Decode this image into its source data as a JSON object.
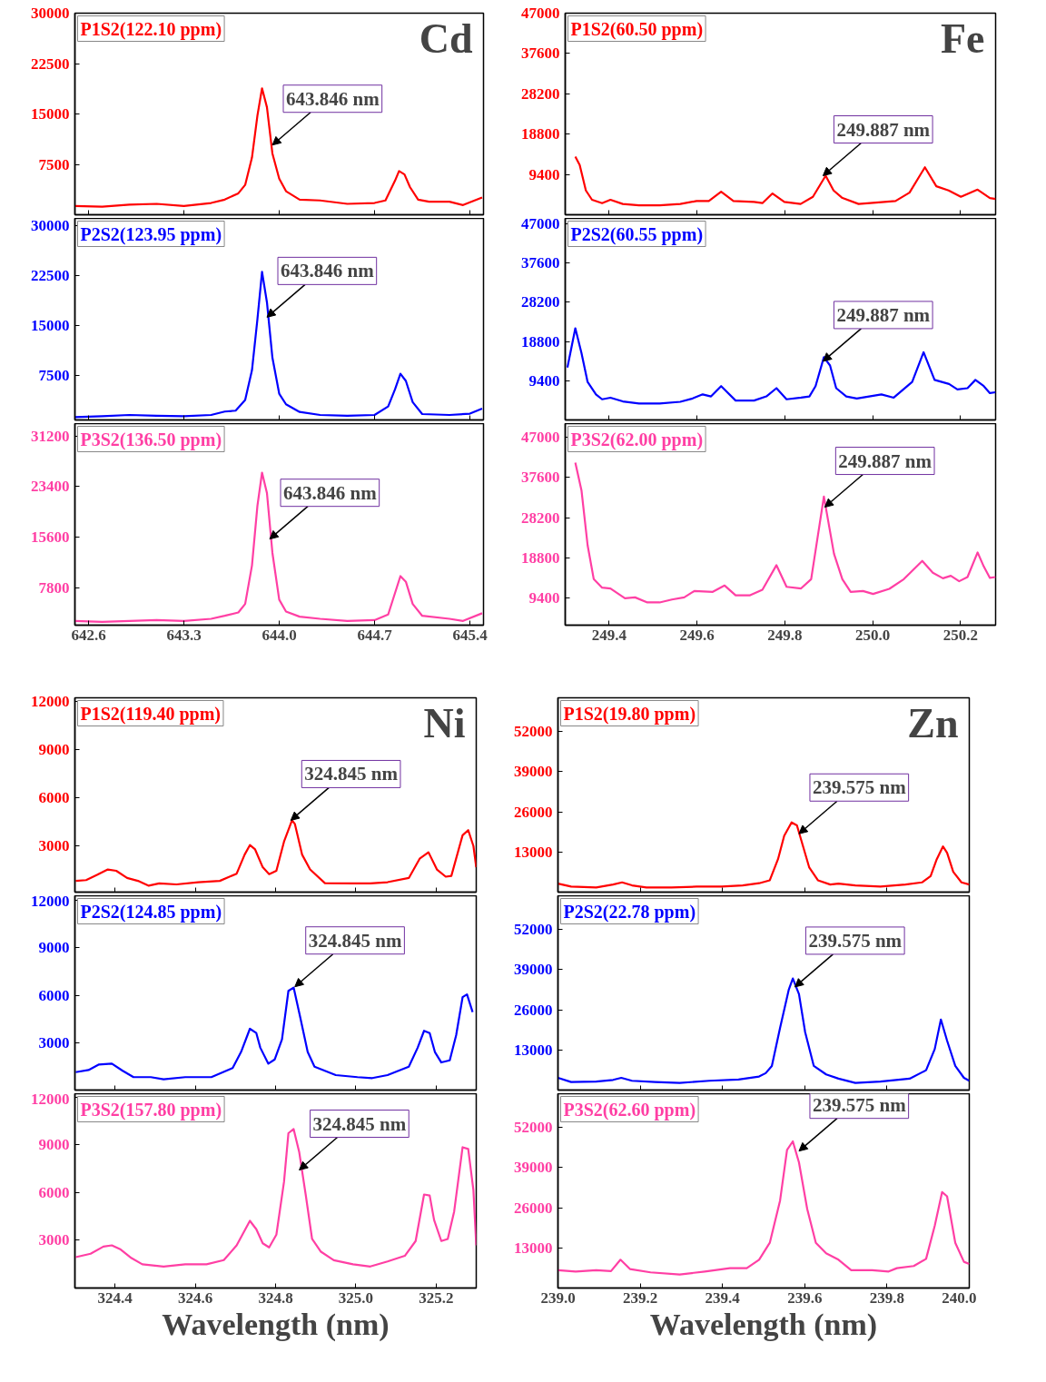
{
  "chart_data": [
    {
      "type": "line",
      "title": "Cd",
      "xlim": [
        642.5,
        645.5
      ],
      "ylim": [
        0,
        30000
      ],
      "xticks": [
        642.6,
        643.3,
        644,
        644.7,
        645.4
      ],
      "yticks": [
        7500,
        15000,
        22500,
        30000
      ],
      "tick_labels": "y",
      "x": [
        642.5,
        642.7,
        642.9,
        643.1,
        643.3,
        643.5,
        643.6,
        643.7,
        643.75,
        643.8,
        643.84,
        643.874,
        643.91,
        643.95,
        644.0,
        644.05,
        644.15,
        644.3,
        644.5,
        644.7,
        644.78,
        644.85,
        644.88,
        644.92,
        644.96,
        645.02,
        645.1,
        645.25,
        645.35,
        645.49
      ],
      "series": [
        {
          "name": "P1S2(122.10 ppm)",
          "color": "#ff0000",
          "values": [
            1310,
            1190,
            1500,
            1625,
            1310,
            1750,
            2250,
            3190,
            4440,
            8500,
            14750,
            18810,
            16000,
            9125,
            5375,
            3500,
            2250,
            2125,
            1625,
            1750,
            2125,
            5060,
            6500,
            6000,
            4125,
            2250,
            1940,
            1940,
            1440,
            2560
          ]
        }
      ],
      "annotations": [
        {
          "text": "643.846 nm",
          "x": 643.95,
          "y": 10375
        }
      ]
    },
    {
      "type": "line",
      "xlim": [
        642.5,
        645.5
      ],
      "ylim": [
        900,
        31060
      ],
      "xticks": [
        642.6,
        643.3,
        644,
        644.7,
        645.4
      ],
      "yticks": [
        7500,
        15000,
        22500,
        30000
      ],
      "tick_labels": "y",
      "x": [
        642.5,
        642.7,
        642.9,
        643.1,
        643.3,
        643.5,
        643.6,
        643.68,
        643.75,
        643.8,
        643.84,
        643.874,
        643.91,
        643.95,
        644.0,
        644.05,
        644.15,
        644.3,
        644.5,
        644.7,
        644.8,
        644.85,
        644.89,
        644.93,
        644.98,
        645.05,
        645.25,
        645.4,
        645.49
      ],
      "series": [
        {
          "name": "P2S2(123.95 ppm)",
          "color": "#0000ff",
          "values": [
            1330,
            1460,
            1650,
            1520,
            1460,
            1650,
            2160,
            2290,
            3880,
            8330,
            15950,
            23070,
            18500,
            10230,
            4830,
            3240,
            2100,
            1650,
            1520,
            1650,
            2920,
            5460,
            7820,
            6740,
            3560,
            1780,
            1650,
            1840,
            2600
          ]
        }
      ],
      "annotations": [
        {
          "text": "643.846 nm",
          "x": 643.91,
          "y": 16270
        }
      ]
    },
    {
      "type": "line",
      "xlim": [
        642.5,
        645.5
      ],
      "ylim": [
        2100,
        33100
      ],
      "xticks": [
        642.6,
        643.3,
        {
          "value": 644,
          "label": "644.0"
        },
        644.7,
        645.4
      ],
      "yticks": [
        7800,
        15600,
        23400,
        31200
      ],
      "x": [
        642.5,
        642.7,
        642.9,
        643.1,
        643.3,
        643.5,
        643.6,
        643.7,
        643.75,
        643.8,
        643.84,
        643.874,
        643.91,
        643.95,
        644.0,
        644.05,
        644.15,
        644.3,
        644.5,
        644.7,
        644.8,
        644.85,
        644.89,
        644.93,
        644.98,
        645.05,
        645.25,
        645.35,
        645.49
      ],
      "series": [
        {
          "name": "P3S2(136.50 ppm)",
          "color": "#ff3fa4",
          "values": [
            2750,
            2620,
            2750,
            2880,
            2750,
            3080,
            3540,
            4060,
            5370,
            11270,
            20450,
            25560,
            22420,
            13240,
            6030,
            4190,
            3410,
            3080,
            2750,
            2880,
            3740,
            7020,
            9640,
            8780,
            5370,
            3540,
            3080,
            2750,
            3930
          ]
        }
      ],
      "annotations": [
        {
          "text": "643.846 nm",
          "x": 643.93,
          "y": 15340
        }
      ]
    },
    {
      "type": "line",
      "title": "Fe",
      "xlim": [
        249.3,
        250.28
      ],
      "ylim": [
        0,
        47000
      ],
      "xticks": [
        249.4,
        249.6,
        249.8,
        250,
        250.2
      ],
      "yticks": [
        9400,
        18800,
        28200,
        37600,
        47000
      ],
      "tick_labels": "y",
      "x": [
        249.323,
        249.333,
        249.347,
        249.361,
        249.384,
        249.403,
        249.431,
        249.468,
        249.515,
        249.562,
        249.599,
        249.627,
        249.655,
        249.683,
        249.73,
        249.749,
        249.772,
        249.799,
        249.836,
        249.864,
        249.893,
        249.911,
        249.93,
        249.968,
        250.014,
        250.052,
        250.084,
        250.119,
        250.145,
        250.173,
        250.201,
        250.239,
        250.267,
        250.28
      ],
      "series": [
        {
          "name": "P1S2(60.50 ppm)",
          "color": "#ff0000",
          "values": [
            13530,
            11570,
            5660,
            3490,
            2710,
            3490,
            2510,
            2210,
            2210,
            2510,
            3200,
            3200,
            5360,
            3200,
            3000,
            2710,
            4970,
            3000,
            2510,
            4180,
            9100,
            5660,
            3990,
            2510,
            2900,
            3200,
            5170,
            11070,
            6640,
            5660,
            4180,
            5860,
            3890,
            3690
          ]
        }
      ],
      "annotations": [
        {
          "text": "249.887 nm",
          "x": 249.887,
          "y": 9100
        }
      ]
    },
    {
      "type": "line",
      "xlim": [
        249.3,
        250.28
      ],
      "ylim": [
        0,
        48300
      ],
      "xticks": [
        249.4,
        249.6,
        249.8,
        250,
        250.2
      ],
      "yticks": [
        9400,
        18800,
        28200,
        37600,
        47000
      ],
      "tick_labels": "y",
      "x": [
        249.305,
        249.323,
        249.337,
        249.351,
        249.37,
        249.384,
        249.403,
        249.431,
        249.468,
        249.515,
        249.562,
        249.59,
        249.613,
        249.632,
        249.655,
        249.688,
        249.73,
        249.758,
        249.781,
        249.804,
        249.837,
        249.856,
        249.87,
        249.889,
        249.903,
        249.917,
        249.94,
        249.964,
        250.02,
        250.048,
        250.09,
        250.116,
        250.141,
        250.174,
        250.193,
        250.216,
        250.234,
        250.253,
        250.267,
        250.28
      ],
      "series": [
        {
          "name": "P2S2(60.55 ppm)",
          "color": "#0000ff",
          "values": [
            12570,
            21970,
            16030,
            9100,
            6130,
            4950,
            5340,
            4450,
            3960,
            3960,
            4350,
            5150,
            6130,
            5640,
            8110,
            4650,
            4650,
            5640,
            7620,
            4950,
            5340,
            5640,
            8110,
            15040,
            13060,
            7620,
            5640,
            5150,
            6130,
            5340,
            9100,
            16230,
            9600,
            8610,
            7320,
            7620,
            9600,
            8110,
            6430,
            6630
          ]
        }
      ],
      "annotations": [
        {
          "text": "249.887 nm",
          "x": 249.887,
          "y": 14050
        }
      ]
    },
    {
      "type": "line",
      "xlim": [
        249.3,
        250.28
      ],
      "ylim": [
        3100,
        50200
      ],
      "xticks": [
        249.4,
        249.6,
        249.8,
        {
          "value": 250,
          "label": "250.0"
        },
        250.2
      ],
      "yticks": [
        9400,
        18800,
        28200,
        37600,
        47000
      ],
      "x": [
        249.323,
        249.337,
        249.351,
        249.365,
        249.384,
        249.403,
        249.436,
        249.459,
        249.487,
        249.515,
        249.543,
        249.571,
        249.594,
        249.636,
        249.663,
        249.688,
        249.721,
        249.749,
        249.781,
        249.804,
        249.837,
        249.86,
        249.889,
        249.912,
        249.931,
        249.95,
        249.978,
        250.001,
        250.038,
        250.071,
        250.113,
        250.137,
        250.16,
        250.178,
        250.197,
        250.216,
        250.239,
        250.253,
        250.267,
        250.28
      ],
      "series": [
        {
          "name": "P3S2(62.00 ppm)",
          "color": "#ff3fa4",
          "values": [
            41060,
            34630,
            21770,
            13850,
            11870,
            11680,
            9400,
            9600,
            8410,
            8410,
            9100,
            9600,
            11080,
            10880,
            12370,
            10090,
            10090,
            11380,
            17120,
            12070,
            11680,
            13850,
            33150,
            19790,
            13850,
            10880,
            11080,
            10390,
            11580,
            13850,
            18110,
            15340,
            14050,
            14640,
            13360,
            14350,
            20090,
            16820,
            14150,
            14350
          ]
        }
      ],
      "annotations": [
        {
          "text": "249.887 nm",
          "x": 249.891,
          "y": 30670
        }
      ]
    },
    {
      "type": "line",
      "title": "Ni",
      "xlim": [
        324.3,
        325.3
      ],
      "ylim": [
        100,
        12200
      ],
      "xticks": [
        324.4,
        324.6,
        324.8,
        325,
        325.2
      ],
      "yticks": [
        3000,
        6000,
        9000,
        12000
      ],
      "tick_labels": "y",
      "x": [
        324.302,
        324.328,
        324.355,
        324.382,
        324.403,
        324.43,
        324.457,
        324.484,
        324.51,
        324.553,
        324.607,
        324.661,
        324.703,
        324.723,
        324.736,
        324.749,
        324.768,
        324.784,
        324.802,
        324.821,
        324.841,
        324.848,
        324.866,
        324.886,
        324.923,
        324.993,
        325.036,
        325.079,
        325.132,
        325.159,
        325.181,
        325.202,
        325.224,
        325.238,
        325.266,
        325.28,
        325.293,
        325.3
      ],
      "series": [
        {
          "name": "P1S2(119.40 ppm)",
          "color": "#ff0000",
          "values": [
            796,
            850,
            1170,
            1510,
            1430,
            980,
            800,
            500,
            640,
            580,
            720,
            800,
            1250,
            2440,
            3030,
            2760,
            1650,
            1220,
            1430,
            3240,
            4570,
            4350,
            2440,
            1510,
            660,
            640,
            640,
            720,
            980,
            2180,
            2580,
            1510,
            1060,
            1110,
            3640,
            3960,
            2970,
            1650
          ]
        }
      ],
      "annotations": [
        {
          "text": "324.845 nm",
          "x": 324.838,
          "y": 4570
        }
      ]
    },
    {
      "type": "line",
      "xlim": [
        324.3,
        325.3
      ],
      "ylim": [
        0,
        12300
      ],
      "xticks": [
        324.4,
        324.6,
        324.8,
        325,
        325.2
      ],
      "yticks": [
        3000,
        6000,
        9000,
        12000
      ],
      "tick_labels": "y",
      "x": [
        324.302,
        324.334,
        324.36,
        324.392,
        324.419,
        324.446,
        324.489,
        324.521,
        324.575,
        324.64,
        324.693,
        324.714,
        324.736,
        324.752,
        324.762,
        324.782,
        324.798,
        324.816,
        324.832,
        324.845,
        324.862,
        324.88,
        324.897,
        324.95,
        325.004,
        325.041,
        325.079,
        325.132,
        325.154,
        325.17,
        325.184,
        325.197,
        325.213,
        325.234,
        325.25,
        325.266,
        325.277,
        325.291
      ],
      "series": [
        {
          "name": "P2S2(124.85 ppm)",
          "color": "#0000ff",
          "values": [
            1136,
            1270,
            1620,
            1670,
            1220,
            820,
            820,
            680,
            820,
            820,
            1400,
            2410,
            3880,
            3610,
            2680,
            1670,
            1940,
            3210,
            6280,
            6490,
            4540,
            2410,
            1480,
            950,
            820,
            760,
            950,
            1480,
            2680,
            3750,
            3610,
            2410,
            1750,
            1880,
            3480,
            5880,
            6060,
            4940
          ]
        }
      ],
      "annotations": [
        {
          "text": "324.845 nm",
          "x": 324.848,
          "y": 6540
        }
      ]
    },
    {
      "type": "line",
      "xlim": [
        324.3,
        325.3
      ],
      "ylim": [
        0,
        12200
      ],
      "xticks": [
        324.4,
        324.6,
        324.8,
        {
          "value": 325,
          "label": "325.0"
        },
        325.2
      ],
      "yticks": [
        3000,
        6000,
        9000,
        12000
      ],
      "xlabel": "Wavelength (nm)",
      "x": [
        324.302,
        324.339,
        324.371,
        324.392,
        324.414,
        324.441,
        324.468,
        324.521,
        324.575,
        324.628,
        324.671,
        324.703,
        324.736,
        324.752,
        324.768,
        324.784,
        324.802,
        324.821,
        324.832,
        324.845,
        324.859,
        324.875,
        324.891,
        324.913,
        324.945,
        324.993,
        325.036,
        325.079,
        325.122,
        325.149,
        325.17,
        325.184,
        325.195,
        325.213,
        325.229,
        325.245,
        325.266,
        325.28,
        325.293,
        325.3
      ],
      "series": [
        {
          "name": "P3S2(157.80 ppm)",
          "color": "#ff3fa4",
          "values": [
            1940,
            2150,
            2600,
            2680,
            2420,
            1880,
            1490,
            1350,
            1490,
            1490,
            1750,
            2680,
            4220,
            3690,
            2810,
            2550,
            3350,
            6660,
            9720,
            9980,
            8520,
            5870,
            3080,
            2280,
            1750,
            1490,
            1350,
            1670,
            2020,
            2950,
            5870,
            5810,
            4270,
            2950,
            3080,
            4810,
            8840,
            8730,
            6130,
            2680
          ]
        }
      ],
      "annotations": [
        {
          "text": "324.845 nm",
          "x": 324.859,
          "y": 7410
        }
      ]
    },
    {
      "type": "line",
      "title": "Zn",
      "xlim": [
        239.0,
        240.0
      ],
      "ylim": [
        0,
        62900
      ],
      "xticks": [
        239,
        239.2,
        239.4,
        239.6,
        239.8,
        240
      ],
      "yticks": [
        13000,
        26000,
        39000,
        52000
      ],
      "tick_labels": "y",
      "x": [
        239.0,
        239.032,
        239.093,
        239.134,
        239.156,
        239.18,
        239.215,
        239.276,
        239.337,
        239.398,
        239.449,
        239.489,
        239.515,
        239.535,
        239.55,
        239.568,
        239.581,
        239.596,
        239.611,
        239.632,
        239.662,
        239.682,
        239.723,
        239.784,
        239.845,
        239.885,
        239.906,
        239.921,
        239.936,
        239.946,
        239.961,
        239.981,
        240.0
      ],
      "series": [
        {
          "name": "P1S2(19.80 ppm)",
          "color": "#ff0000",
          "values": [
            2740,
            1780,
            1510,
            2470,
            3150,
            2190,
            1510,
            1510,
            1780,
            1780,
            2190,
            2880,
            3830,
            10670,
            18200,
            22580,
            21620,
            14780,
            7940,
            3830,
            2470,
            2740,
            2190,
            1780,
            2470,
            3150,
            5200,
            10670,
            14780,
            12730,
            6570,
            3150,
            2470
          ]
        }
      ],
      "annotations": [
        {
          "text": "239.575 nm",
          "x": 239.586,
          "y": 18880
        }
      ]
    },
    {
      "type": "line",
      "xlim": [
        239.0,
        240.0
      ],
      "ylim": [
        0,
        62900
      ],
      "xticks": [
        239,
        239.2,
        239.4,
        239.6,
        239.8,
        240
      ],
      "yticks": [
        13000,
        26000,
        39000,
        52000
      ],
      "tick_labels": "y",
      "x": [
        239.0,
        239.032,
        239.093,
        239.134,
        239.154,
        239.18,
        239.236,
        239.296,
        239.368,
        239.439,
        239.489,
        239.505,
        239.52,
        239.54,
        239.561,
        239.571,
        239.586,
        239.601,
        239.622,
        239.652,
        239.682,
        239.723,
        239.784,
        239.855,
        239.895,
        239.916,
        239.931,
        239.946,
        239.966,
        239.987,
        240.0
      ],
      "series": [
        {
          "name": "P2S2(22.78 ppm)",
          "color": "#0000ff",
          "values": [
            3970,
            2600,
            2740,
            3290,
            3970,
            3010,
            2600,
            2330,
            3010,
            3420,
            4380,
            5480,
            7800,
            20110,
            32430,
            36120,
            31060,
            18750,
            7800,
            5070,
            3700,
            2330,
            2740,
            3700,
            6430,
            13270,
            22850,
            16010,
            7800,
            3970,
            3010
          ]
        }
      ],
      "annotations": [
        {
          "text": "239.575 nm",
          "x": 239.576,
          "y": 33380
        }
      ]
    },
    {
      "type": "line",
      "xlim": [
        239.0,
        240.0
      ],
      "ylim": [
        0,
        62900
      ],
      "xticks": [
        {
          "value": 239,
          "label": "239.0"
        },
        239.2,
        239.4,
        239.6,
        239.8,
        {
          "value": 240,
          "label": "240.0"
        }
      ],
      "yticks": [
        13000,
        26000,
        39000,
        52000
      ],
      "xlabel": "Wavelength (nm)",
      "x": [
        239.0,
        239.043,
        239.093,
        239.129,
        239.152,
        239.175,
        239.225,
        239.296,
        239.357,
        239.418,
        239.459,
        239.489,
        239.515,
        239.54,
        239.557,
        239.571,
        239.586,
        239.606,
        239.627,
        239.652,
        239.682,
        239.713,
        239.764,
        239.804,
        239.824,
        239.865,
        239.895,
        239.916,
        239.934,
        239.946,
        239.966,
        239.987,
        240.0
      ],
      "series": [
        {
          "name": "P3S2(62.60 ppm)",
          "color": "#ff3fa4",
          "values": [
            5750,
            5340,
            5750,
            5480,
            9170,
            6160,
            5070,
            4380,
            5340,
            6430,
            6430,
            9170,
            14640,
            28320,
            44740,
            47470,
            40630,
            25590,
            14640,
            11220,
            9170,
            5750,
            5750,
            5340,
            6430,
            7120,
            9440,
            20110,
            31060,
            29690,
            14640,
            8490,
            7800
          ]
        }
      ],
      "annotations": [
        {
          "text": "239.575 nm",
          "x": 239.586,
          "y": 44330
        }
      ]
    }
  ]
}
